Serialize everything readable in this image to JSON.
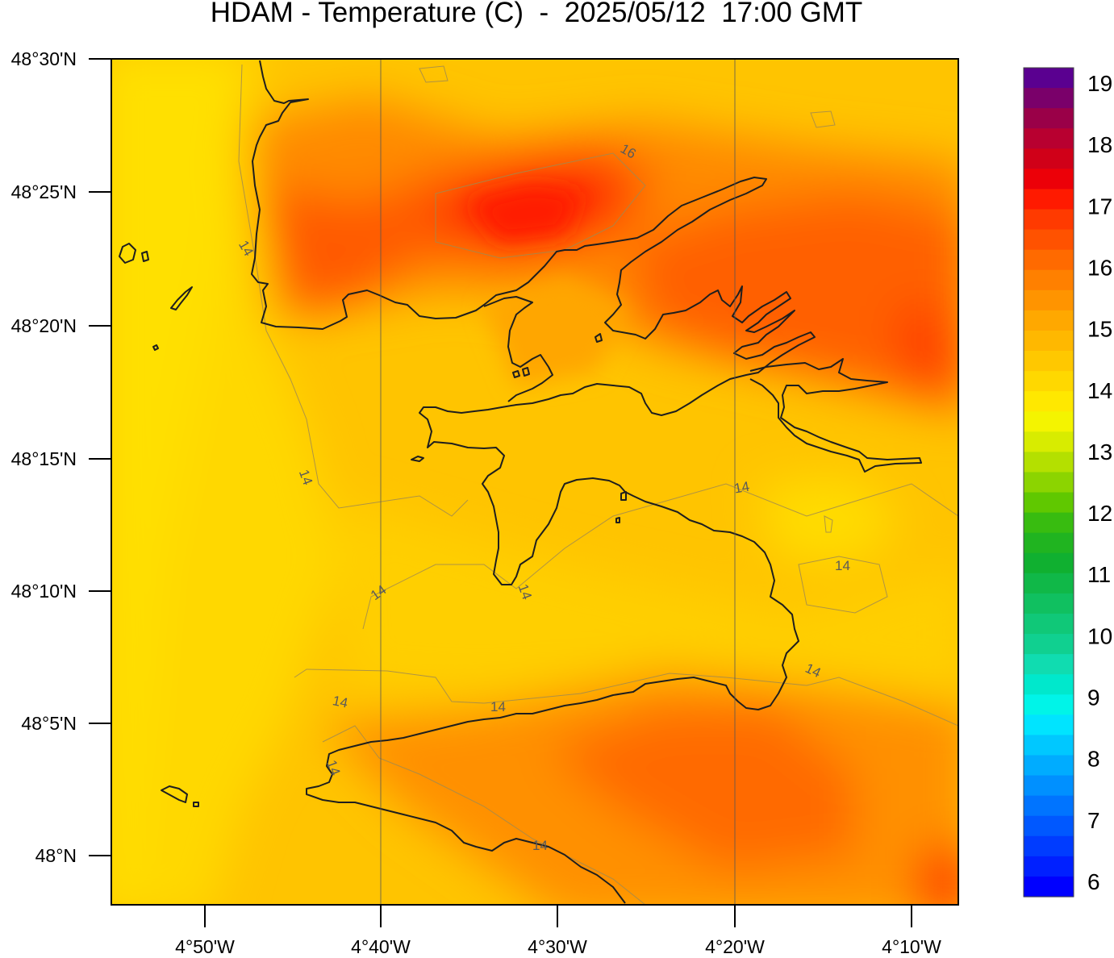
{
  "title": "HDAM - Temperature (C)  -  2025/05/12  17:00 GMT",
  "lat_labels": [
    "48°30'N",
    "48°25'N",
    "48°20'N",
    "48°15'N",
    "48°10'N",
    "48°5'N",
    "48°N"
  ],
  "lon_labels": [
    "4°50'W",
    "4°40'W",
    "4°30'W",
    "4°20'W",
    "4°10'W"
  ],
  "colorbar": {
    "labels": [
      "19",
      "18",
      "17",
      "16",
      "15",
      "14",
      "13",
      "12",
      "11",
      "10",
      "9",
      "8",
      "7",
      "6"
    ],
    "min": 5.75,
    "max": 19.25,
    "colors": [
      "#5a0090",
      "#7a006a",
      "#9a0048",
      "#b80030",
      "#d00018",
      "#ec0008",
      "#ff1a00",
      "#ff3a00",
      "#ff5200",
      "#ff6a00",
      "#ff8000",
      "#ff9400",
      "#ffa800",
      "#ffb800",
      "#ffc800",
      "#ffd800",
      "#ffe800",
      "#f4f400",
      "#d8ec00",
      "#b4e000",
      "#8cd400",
      "#60c800",
      "#38bc10",
      "#20b420",
      "#10b030",
      "#10b848",
      "#10c060",
      "#10c878",
      "#10d090",
      "#10dcb0",
      "#00e8cc",
      "#00f4e8",
      "#00e4ff",
      "#00c8ff",
      "#00acff",
      "#0090ff",
      "#0074ff",
      "#0058ff",
      "#003cff",
      "#0020ff",
      "#0000ff"
    ]
  },
  "contour_labels": [
    "16",
    "14",
    "14",
    "14",
    "14",
    "14",
    "14",
    "14",
    "14",
    "14",
    "14",
    "14"
  ],
  "colors": {
    "sea": "#ffcc00",
    "coast": "#222222",
    "contour": "#9a8a5a"
  }
}
